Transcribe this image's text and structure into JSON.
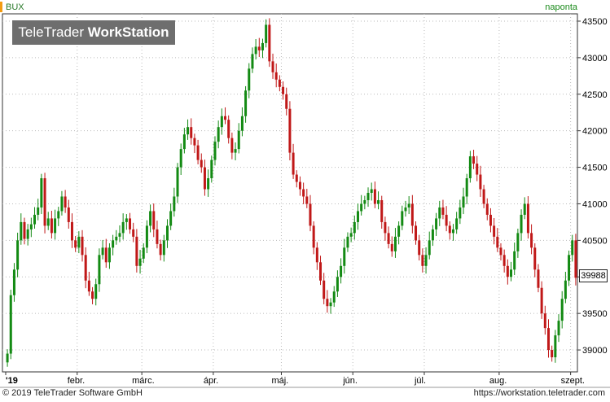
{
  "header": {
    "symbol": "BUX",
    "period": "naponta"
  },
  "watermark": {
    "part1": "TeleTrader ",
    "part2": "WorkStation"
  },
  "footer": {
    "copyright": "© 2019 TeleTrader Software GmbH",
    "url": "https://workstation.teletrader.com"
  },
  "last_value": "39988",
  "colors": {
    "up": "#138a13",
    "down": "#c01818",
    "grid": "#bbbbbb"
  },
  "chart_data": {
    "type": "candlestick",
    "title": "BUX",
    "ylim": [
      38700,
      43600
    ],
    "y_ticks": [
      39000,
      39500,
      40000,
      40500,
      41000,
      41500,
      42000,
      42500,
      43000,
      43500
    ],
    "x_labels": [
      "'19",
      "febr.",
      "márc.",
      "ápr.",
      "máj.",
      "jún.",
      "júl.",
      "aug.",
      "szept."
    ],
    "closes": [
      38950,
      39750,
      40100,
      40500,
      40750,
      40520,
      40650,
      40720,
      40850,
      40950,
      41350,
      40700,
      40800,
      40600,
      40800,
      40900,
      41100,
      40950,
      40750,
      40500,
      40400,
      40550,
      40300,
      39950,
      39800,
      39700,
      39900,
      40300,
      40400,
      40200,
      40400,
      40500,
      40550,
      40600,
      40750,
      40800,
      40650,
      40550,
      40150,
      40250,
      40400,
      40700,
      40900,
      40650,
      40450,
      40300,
      40500,
      40700,
      40900,
      41100,
      41500,
      41750,
      41950,
      42050,
      41900,
      41800,
      41600,
      41500,
      41200,
      41350,
      41600,
      41850,
      42050,
      42200,
      42150,
      41900,
      41700,
      41750,
      42000,
      42200,
      42550,
      42850,
      43050,
      43150,
      43100,
      43200,
      43450,
      42950,
      42800,
      42700,
      42600,
      42500,
      42300,
      41700,
      41400,
      41300,
      41200,
      41100,
      41000,
      40700,
      40400,
      40200,
      39950,
      39700,
      39600,
      39650,
      39800,
      40000,
      40150,
      40400,
      40550,
      40600,
      40750,
      40900,
      41000,
      41050,
      41150,
      41200,
      41000,
      41050,
      40750,
      40600,
      40450,
      40350,
      40550,
      40700,
      40900,
      40950,
      41000,
      40700,
      40500,
      40300,
      40150,
      40300,
      40500,
      40650,
      40800,
      40950,
      40850,
      40700,
      40600,
      40650,
      40800,
      40950,
      41100,
      41350,
      41650,
      41550,
      41400,
      41200,
      41000,
      40850,
      40700,
      40550,
      40400,
      40300,
      40150,
      40000,
      40100,
      40350,
      40600,
      40850,
      41000,
      40600,
      40400,
      40100,
      39850,
      39500,
      39300,
      39000,
      38900,
      39200,
      39400,
      39700,
      39950,
      40300,
      40500,
      39988
    ]
  }
}
